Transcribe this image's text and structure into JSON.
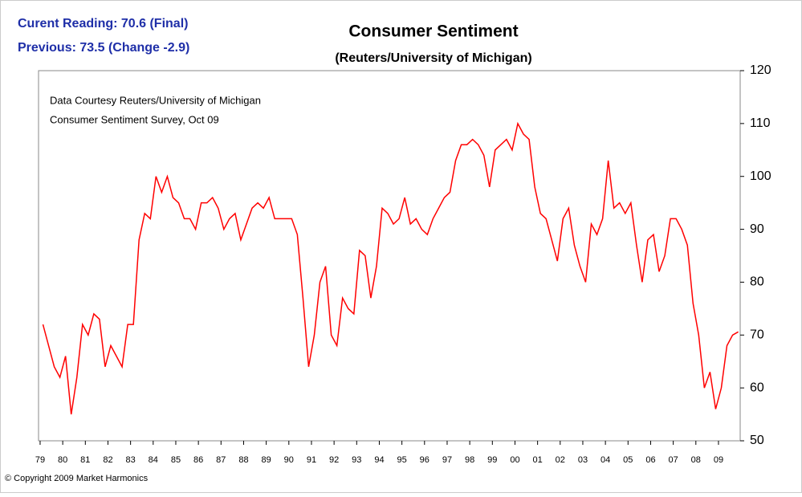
{
  "chart_data": {
    "type": "line",
    "title": "Consumer Sentiment",
    "subtitle": "(Reuters/University of Michigan)",
    "current_reading": "Curent Reading:  70.6 (Final)",
    "previous_reading": "Previous:  73.5 (Change -2.9)",
    "annotations": [
      "Data Courtesy Reuters/University of Michigan",
      "Consumer Sentiment Survey, Oct 09"
    ],
    "copyright": "© Copyright 2009 Market Harmonics",
    "color": "#ff0000",
    "xlim": [
      1978.93,
      2009.96
    ],
    "ylim": [
      50,
      120
    ],
    "yticks": [
      50,
      60,
      70,
      80,
      90,
      100,
      110,
      120
    ],
    "xticks": [
      {
        "value": 1979,
        "label": "79"
      },
      {
        "value": 1980,
        "label": "80"
      },
      {
        "value": 1981,
        "label": "81"
      },
      {
        "value": 1982,
        "label": "82"
      },
      {
        "value": 1983,
        "label": "83"
      },
      {
        "value": 1984,
        "label": "84"
      },
      {
        "value": 1985,
        "label": "85"
      },
      {
        "value": 1986,
        "label": "86"
      },
      {
        "value": 1987,
        "label": "87"
      },
      {
        "value": 1988,
        "label": "88"
      },
      {
        "value": 1989,
        "label": "89"
      },
      {
        "value": 1990,
        "label": "90"
      },
      {
        "value": 1991,
        "label": "91"
      },
      {
        "value": 1992,
        "label": "92"
      },
      {
        "value": 1993,
        "label": "93"
      },
      {
        "value": 1994,
        "label": "94"
      },
      {
        "value": 1995,
        "label": "95"
      },
      {
        "value": 1996,
        "label": "96"
      },
      {
        "value": 1997,
        "label": "97"
      },
      {
        "value": 1998,
        "label": "98"
      },
      {
        "value": 1999,
        "label": "99"
      },
      {
        "value": 2000,
        "label": "00"
      },
      {
        "value": 2001,
        "label": "01"
      },
      {
        "value": 2002,
        "label": "02"
      },
      {
        "value": 2003,
        "label": "03"
      },
      {
        "value": 2004,
        "label": "04"
      },
      {
        "value": 2005,
        "label": "05"
      },
      {
        "value": 2006,
        "label": "06"
      },
      {
        "value": 2007,
        "label": "07"
      },
      {
        "value": 2008,
        "label": "08"
      },
      {
        "value": 2009,
        "label": "09"
      }
    ],
    "x": [
      1979.125,
      1979.375,
      1979.625,
      1979.875,
      1980.125,
      1980.375,
      1980.625,
      1980.875,
      1981.125,
      1981.375,
      1981.625,
      1981.875,
      1982.125,
      1982.375,
      1982.625,
      1982.875,
      1983.125,
      1983.375,
      1983.625,
      1983.875,
      1984.125,
      1984.375,
      1984.625,
      1984.875,
      1985.125,
      1985.375,
      1985.625,
      1985.875,
      1986.125,
      1986.375,
      1986.625,
      1986.875,
      1987.125,
      1987.375,
      1987.625,
      1987.875,
      1988.125,
      1988.375,
      1988.625,
      1988.875,
      1989.125,
      1989.375,
      1989.625,
      1989.875,
      1990.125,
      1990.375,
      1990.625,
      1990.875,
      1991.125,
      1991.375,
      1991.625,
      1991.875,
      1992.125,
      1992.375,
      1992.625,
      1992.875,
      1993.125,
      1993.375,
      1993.625,
      1993.875,
      1994.125,
      1994.375,
      1994.625,
      1994.875,
      1995.125,
      1995.375,
      1995.625,
      1995.875,
      1996.125,
      1996.375,
      1996.625,
      1996.875,
      1997.125,
      1997.375,
      1997.625,
      1997.875,
      1998.125,
      1998.375,
      1998.625,
      1998.875,
      1999.125,
      1999.375,
      1999.625,
      1999.875,
      2000.125,
      2000.375,
      2000.625,
      2000.875,
      2001.125,
      2001.375,
      2001.625,
      2001.875,
      2002.125,
      2002.375,
      2002.625,
      2002.875,
      2003.125,
      2003.375,
      2003.625,
      2003.875,
      2004.125,
      2004.375,
      2004.625,
      2004.875,
      2005.125,
      2005.375,
      2005.625,
      2005.875,
      2006.125,
      2006.375,
      2006.625,
      2006.875,
      2007.125,
      2007.375,
      2007.625,
      2007.875,
      2008.125,
      2008.375,
      2008.625,
      2008.875,
      2009.125,
      2009.375,
      2009.625,
      2009.875
    ],
    "values": [
      72,
      68,
      64,
      62,
      66,
      55,
      62,
      72,
      70,
      74,
      73,
      64,
      68,
      66,
      64,
      72,
      72,
      88,
      93,
      92,
      100,
      97,
      100,
      96,
      95,
      92,
      92,
      90,
      95,
      95,
      96,
      94,
      90,
      92,
      93,
      88,
      91,
      94,
      95,
      94,
      96,
      92,
      92,
      92,
      92,
      89,
      77,
      64,
      70,
      80,
      83,
      70,
      68,
      77,
      75,
      74,
      86,
      85,
      77,
      83,
      94,
      93,
      91,
      92,
      96,
      91,
      92,
      90,
      89,
      92,
      94,
      96,
      97,
      103,
      106,
      106,
      107,
      106,
      104,
      98,
      105,
      106,
      107,
      105,
      110,
      108,
      107,
      98,
      93,
      92,
      88,
      84,
      92,
      94,
      87,
      83,
      80,
      91,
      89,
      92,
      103,
      94,
      95,
      93,
      95,
      87,
      80,
      88,
      89,
      82,
      85,
      92,
      92,
      90,
      87,
      76,
      70,
      60,
      63,
      56,
      60,
      68,
      70,
      70.6
    ]
  }
}
